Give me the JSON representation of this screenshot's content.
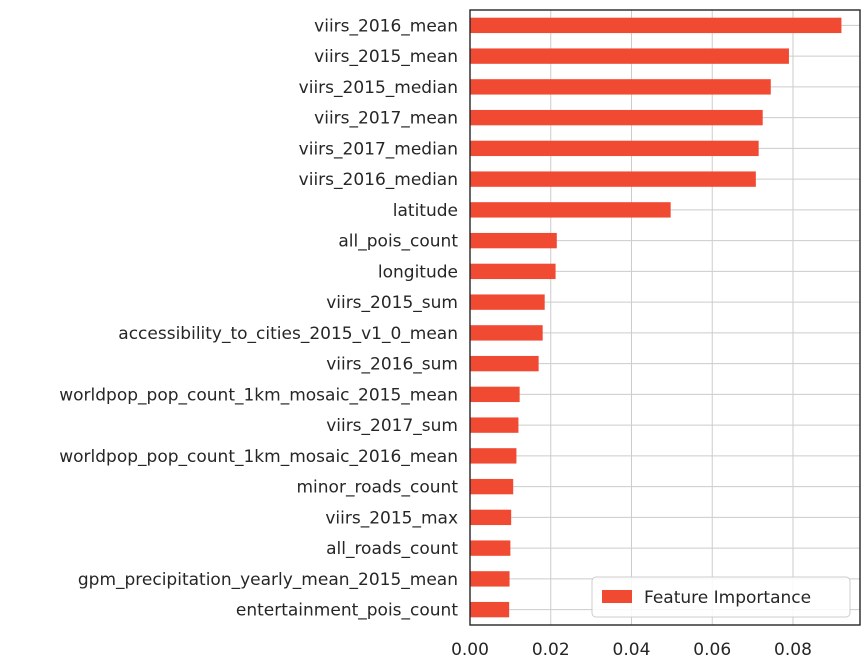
{
  "chart_data": {
    "type": "bar",
    "orientation": "horizontal",
    "categories": [
      "viirs_2016_mean",
      "viirs_2015_mean",
      "viirs_2015_median",
      "viirs_2017_mean",
      "viirs_2017_median",
      "viirs_2016_median",
      "latitude",
      "all_pois_count",
      "longitude",
      "viirs_2015_sum",
      "accessibility_to_cities_2015_v1_0_mean",
      "viirs_2016_sum",
      "worldpop_pop_count_1km_mosaic_2015_mean",
      "viirs_2017_sum",
      "worldpop_pop_count_1km_mosaic_2016_mean",
      "minor_roads_count",
      "viirs_2015_max",
      "all_roads_count",
      "gpm_precipitation_yearly_mean_2015_mean",
      "entertainment_pois_count"
    ],
    "series": [
      {
        "name": "Feature Importance",
        "color": "#f04a33",
        "values": [
          0.092,
          0.079,
          0.0745,
          0.0725,
          0.0715,
          0.0708,
          0.0497,
          0.0215,
          0.0212,
          0.0185,
          0.018,
          0.017,
          0.0123,
          0.012,
          0.0115,
          0.0107,
          0.0102,
          0.01,
          0.0098,
          0.0097
        ]
      }
    ],
    "xlim": [
      0,
      0.0966
    ],
    "xticks": [
      "0.00",
      "0.02",
      "0.04",
      "0.06",
      "0.08"
    ],
    "xtick_values": [
      0,
      0.02,
      0.04,
      0.06,
      0.08
    ],
    "title": "",
    "xlabel": "",
    "ylabel": "",
    "grid": true,
    "legend_position": "bottom-right"
  }
}
